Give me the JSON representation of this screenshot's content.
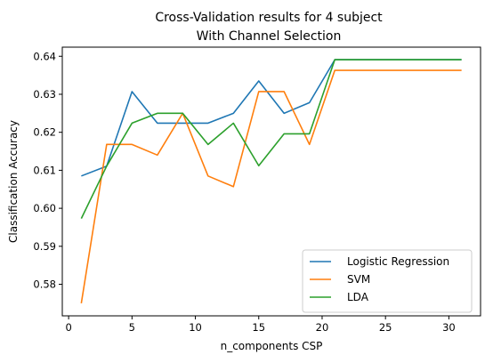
{
  "chart_data": {
    "type": "line",
    "title": [
      "Cross-Validation results for 4 subject",
      "With Channel Selection"
    ],
    "xlabel": "n_components CSP",
    "ylabel": "Classification Accuracy",
    "x": [
      1,
      3,
      5,
      7,
      9,
      11,
      13,
      15,
      17,
      19,
      21,
      23,
      25,
      27,
      29,
      31
    ],
    "xlim": [
      -0.5,
      32.5
    ],
    "ylim": [
      0.5717,
      0.6424
    ],
    "xticks": [
      0,
      5,
      10,
      15,
      20,
      25,
      30
    ],
    "yticks": [
      0.58,
      0.59,
      0.6,
      0.61,
      0.62,
      0.63,
      0.64
    ],
    "ytick_labels": [
      "0.58",
      "0.59",
      "0.60",
      "0.61",
      "0.62",
      "0.63",
      "0.64"
    ],
    "grid": false,
    "legend_position": "lower right",
    "series": [
      {
        "name": "Logistic Regression",
        "color": "#1f77b4",
        "values": [
          0.6085,
          0.6111,
          0.6307,
          0.6224,
          0.6224,
          0.6224,
          0.625,
          0.6335,
          0.625,
          0.6278,
          0.6391,
          0.6391,
          0.6391,
          0.6391,
          0.6391,
          0.6391
        ]
      },
      {
        "name": "SVM",
        "color": "#ff7f0e",
        "values": [
          0.575,
          0.6168,
          0.6168,
          0.614,
          0.625,
          0.6085,
          0.6057,
          0.6307,
          0.6307,
          0.6168,
          0.6363,
          0.6363,
          0.6363,
          0.6363,
          0.6363,
          0.6363
        ]
      },
      {
        "name": "LDA",
        "color": "#2ca02c",
        "values": [
          0.5973,
          0.6111,
          0.6224,
          0.625,
          0.625,
          0.6168,
          0.6224,
          0.6112,
          0.6196,
          0.6196,
          0.6391,
          0.6391,
          0.6391,
          0.6391,
          0.6391,
          0.6391
        ]
      }
    ]
  }
}
